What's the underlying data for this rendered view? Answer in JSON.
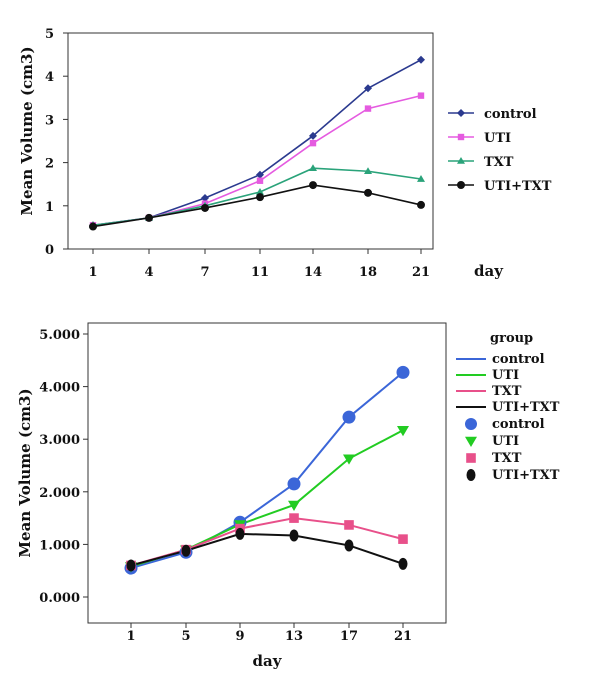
{
  "chart_data": [
    {
      "type": "line",
      "xlabel": "day",
      "ylabel": "Mean Volume (cm3)",
      "categories": [
        "1",
        "4",
        "7",
        "11",
        "14",
        "18",
        "21"
      ],
      "yticks": [
        "0",
        "1",
        "2",
        "3",
        "4",
        "5"
      ],
      "ylim": [
        0,
        5
      ],
      "grid": false,
      "legend_position": "right",
      "series": [
        {
          "name": "control",
          "marker": "diamond",
          "color": "#2b3a8f",
          "values": [
            0.55,
            0.72,
            1.18,
            1.72,
            2.62,
            3.72,
            4.38
          ]
        },
        {
          "name": "UTI",
          "marker": "square",
          "color": "#e55be0",
          "values": [
            0.55,
            0.72,
            1.05,
            1.58,
            2.45,
            3.25,
            3.55
          ]
        },
        {
          "name": "TXT",
          "marker": "triangle",
          "color": "#2aa37a",
          "values": [
            0.55,
            0.72,
            1.0,
            1.32,
            1.87,
            1.8,
            1.62
          ]
        },
        {
          "name": "UTI+TXT",
          "marker": "circle",
          "color": "#111111",
          "values": [
            0.52,
            0.72,
            0.95,
            1.2,
            1.48,
            1.3,
            1.02
          ]
        }
      ]
    },
    {
      "type": "line",
      "xlabel": "day",
      "ylabel": "Mean Volume (cm3)",
      "categories": [
        "1",
        "5",
        "9",
        "13",
        "17",
        "21"
      ],
      "yticks": [
        "0.000",
        "1.000",
        "2.000",
        "3.000",
        "4.000",
        "5.000"
      ],
      "ylim": [
        0,
        5
      ],
      "grid": false,
      "legend_title": "group",
      "legend_position": "right",
      "series": [
        {
          "name": "control",
          "color": "#3b66d8",
          "marker": "circle",
          "values": [
            0.55,
            0.85,
            1.42,
            2.15,
            3.42,
            4.27
          ]
        },
        {
          "name": "UTI",
          "color": "#22cc22",
          "marker": "triangle-down",
          "values": [
            0.58,
            0.9,
            1.38,
            1.75,
            2.63,
            3.17
          ]
        },
        {
          "name": "TXT",
          "color": "#e8508a",
          "marker": "square",
          "values": [
            0.6,
            0.9,
            1.3,
            1.5,
            1.37,
            1.1
          ]
        },
        {
          "name": "UTI+TXT",
          "color": "#111111",
          "marker": "ellipse",
          "values": [
            0.6,
            0.88,
            1.2,
            1.17,
            0.98,
            0.63
          ]
        }
      ]
    }
  ]
}
